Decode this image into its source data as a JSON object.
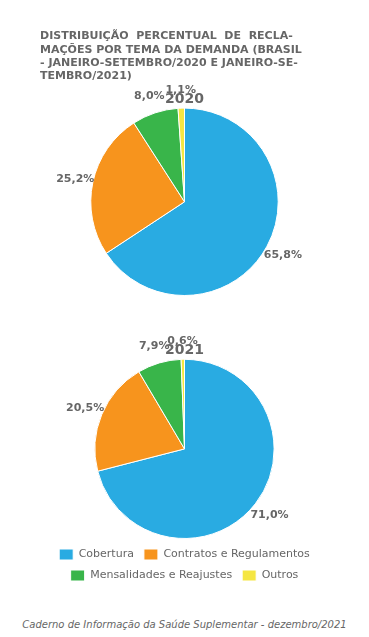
{
  "chart_data": [
    {
      "type": "pie",
      "title": [
        "DISTRIBUIÇÃO  PERCENTUAL  DE  RECLA-",
        "MAÇÕES POR TEMA DA DEMANDA (BRASIL",
        "- JANEIRO-SETEMBRO/2020 E JANEIRO-SE-",
        "TEMBRO/2021)"
      ],
      "subtitle": "2020",
      "categories": [
        "Cobertura",
        "Contratos e Regulamentos",
        "Mensalidades e Reajustes",
        "Outros"
      ],
      "values": [
        65.8,
        25.2,
        8.0,
        1.1
      ],
      "value_labels": [
        "65,8%",
        "25,2%",
        "8,0%",
        "1,1%"
      ],
      "colors": [
        "#29abe2",
        "#f7941d",
        "#39b54a",
        "#f5e642"
      ],
      "data_labels": true
    },
    {
      "type": "pie",
      "subtitle": "2021",
      "categories": [
        "Cobertura",
        "Contratos e Regulamentos",
        "Mensalidades e Reajustes",
        "Outros"
      ],
      "values": [
        71.0,
        20.5,
        7.9,
        0.6
      ],
      "value_labels": [
        "71,0%",
        "20,5%",
        "7,9%",
        "0,6%"
      ],
      "colors": [
        "#29abe2",
        "#f7941d",
        "#39b54a",
        "#f5e642"
      ],
      "data_labels": true,
      "legend": "bottom",
      "annotations": [
        "Caderno de Informação da Saúde Suplementar - dezembro/2021"
      ]
    }
  ]
}
